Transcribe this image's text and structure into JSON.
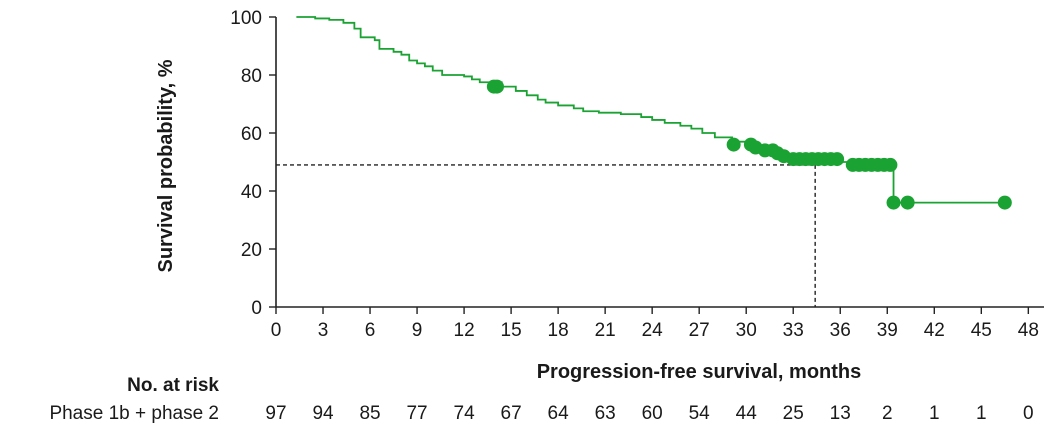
{
  "chart_data": {
    "type": "line",
    "xlabel": "Progression-free survival, months",
    "ylabel": "Survival probability, %",
    "xlim": [
      0,
      49
    ],
    "ylim": [
      0,
      100
    ],
    "x_ticks": [
      0,
      3,
      6,
      9,
      12,
      15,
      18,
      21,
      24,
      27,
      30,
      33,
      36,
      39,
      42,
      45,
      48
    ],
    "y_ticks": [
      0,
      20,
      40,
      60,
      80,
      100
    ],
    "grid": false,
    "colors": {
      "curve": "#1aa332",
      "reference": "#222222"
    },
    "series": [
      {
        "step_points": [
          [
            1.3,
            100
          ],
          [
            2.5,
            99.5
          ],
          [
            3.4,
            99.0
          ],
          [
            4.3,
            98.0
          ],
          [
            5.0,
            96.0
          ],
          [
            5.4,
            93.0
          ],
          [
            6.3,
            92.0
          ],
          [
            6.6,
            89.0
          ],
          [
            7.5,
            88.0
          ],
          [
            8.0,
            87.0
          ],
          [
            8.5,
            85.0
          ],
          [
            9.0,
            84.0
          ],
          [
            9.5,
            83.0
          ],
          [
            10.0,
            81.5
          ],
          [
            10.6,
            80.0
          ],
          [
            12.0,
            79.5
          ],
          [
            12.5,
            78.5
          ],
          [
            13.0,
            77.5
          ],
          [
            14.4,
            76.0
          ],
          [
            15.3,
            74.5
          ],
          [
            16.0,
            73.0
          ],
          [
            16.7,
            71.5
          ],
          [
            17.2,
            70.5
          ],
          [
            18.0,
            69.5
          ],
          [
            19.0,
            68.5
          ],
          [
            19.6,
            67.5
          ],
          [
            20.6,
            67.0
          ],
          [
            22.0,
            66.5
          ],
          [
            23.3,
            65.5
          ],
          [
            24.0,
            64.5
          ],
          [
            24.8,
            63.5
          ],
          [
            25.8,
            62.5
          ],
          [
            26.5,
            61.5
          ],
          [
            27.2,
            60.0
          ],
          [
            28.0,
            58.5
          ],
          [
            29.1,
            57.0
          ],
          [
            30.0,
            56.0
          ],
          [
            30.7,
            55.0
          ],
          [
            31.5,
            54.0
          ],
          [
            32.0,
            53.0
          ],
          [
            32.6,
            51.5
          ],
          [
            33.3,
            51.0
          ],
          [
            36.0,
            50.0
          ],
          [
            36.6,
            49.0
          ],
          [
            39.4,
            36.0
          ],
          [
            46.5,
            36.0
          ]
        ],
        "censored": [
          [
            13.9,
            76.0
          ],
          [
            14.1,
            76.0
          ],
          [
            29.2,
            56.0
          ],
          [
            30.3,
            56.0
          ],
          [
            30.6,
            55.0
          ],
          [
            31.2,
            54.0
          ],
          [
            31.7,
            54.0
          ],
          [
            32.0,
            53.0
          ],
          [
            32.4,
            52.0
          ],
          [
            33.0,
            51.0
          ],
          [
            33.4,
            51.0
          ],
          [
            33.8,
            51.0
          ],
          [
            34.2,
            51.0
          ],
          [
            34.6,
            51.0
          ],
          [
            35.0,
            51.0
          ],
          [
            35.4,
            51.0
          ],
          [
            35.8,
            51.0
          ],
          [
            36.8,
            49.0
          ],
          [
            37.2,
            49.0
          ],
          [
            37.6,
            49.0
          ],
          [
            38.0,
            49.0
          ],
          [
            38.4,
            49.0
          ],
          [
            38.8,
            49.0
          ],
          [
            39.2,
            49.0
          ],
          [
            39.4,
            36.0
          ],
          [
            40.3,
            36.0
          ],
          [
            46.5,
            36.0
          ]
        ]
      }
    ],
    "median_reference": {
      "x": 34.4,
      "y": 49
    }
  },
  "risk_table": {
    "title": "No. at risk",
    "row_label": "Phase 1b + phase 2",
    "values": [
      "97",
      "94",
      "85",
      "77",
      "74",
      "67",
      "64",
      "63",
      "60",
      "54",
      "44",
      "25",
      "13",
      "2",
      "1",
      "1",
      "0"
    ]
  }
}
